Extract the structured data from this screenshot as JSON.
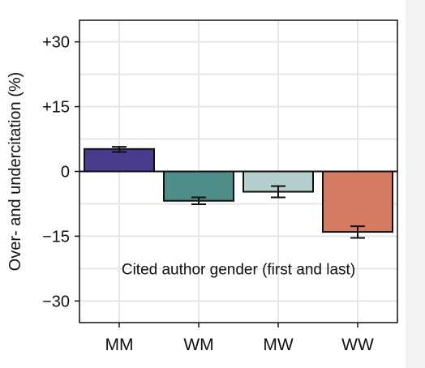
{
  "chart_data": {
    "type": "bar",
    "categories": [
      "MM",
      "WM",
      "MW",
      "WW"
    ],
    "values": [
      5.2,
      -6.8,
      -4.7,
      -14.0
    ],
    "error": [
      [
        4.5,
        5.7
      ],
      [
        -7.6,
        -6.0
      ],
      [
        -6.0,
        -3.4
      ],
      [
        -15.4,
        -12.7
      ]
    ],
    "colors": [
      "#4b3b8f",
      "#4f8e88",
      "#b4cfcd",
      "#d67b63"
    ],
    "ylim": [
      -35,
      35
    ],
    "yticks": [
      30,
      15,
      0,
      -15,
      -30
    ],
    "ytick_labels": [
      "+30",
      "+15",
      "0",
      "−15",
      "−30"
    ],
    "ylabel": "Over- and undercitation (%)",
    "xlabel": "",
    "annotation": "Cited author gender (first and last)",
    "grid": true,
    "zero_line": true
  }
}
